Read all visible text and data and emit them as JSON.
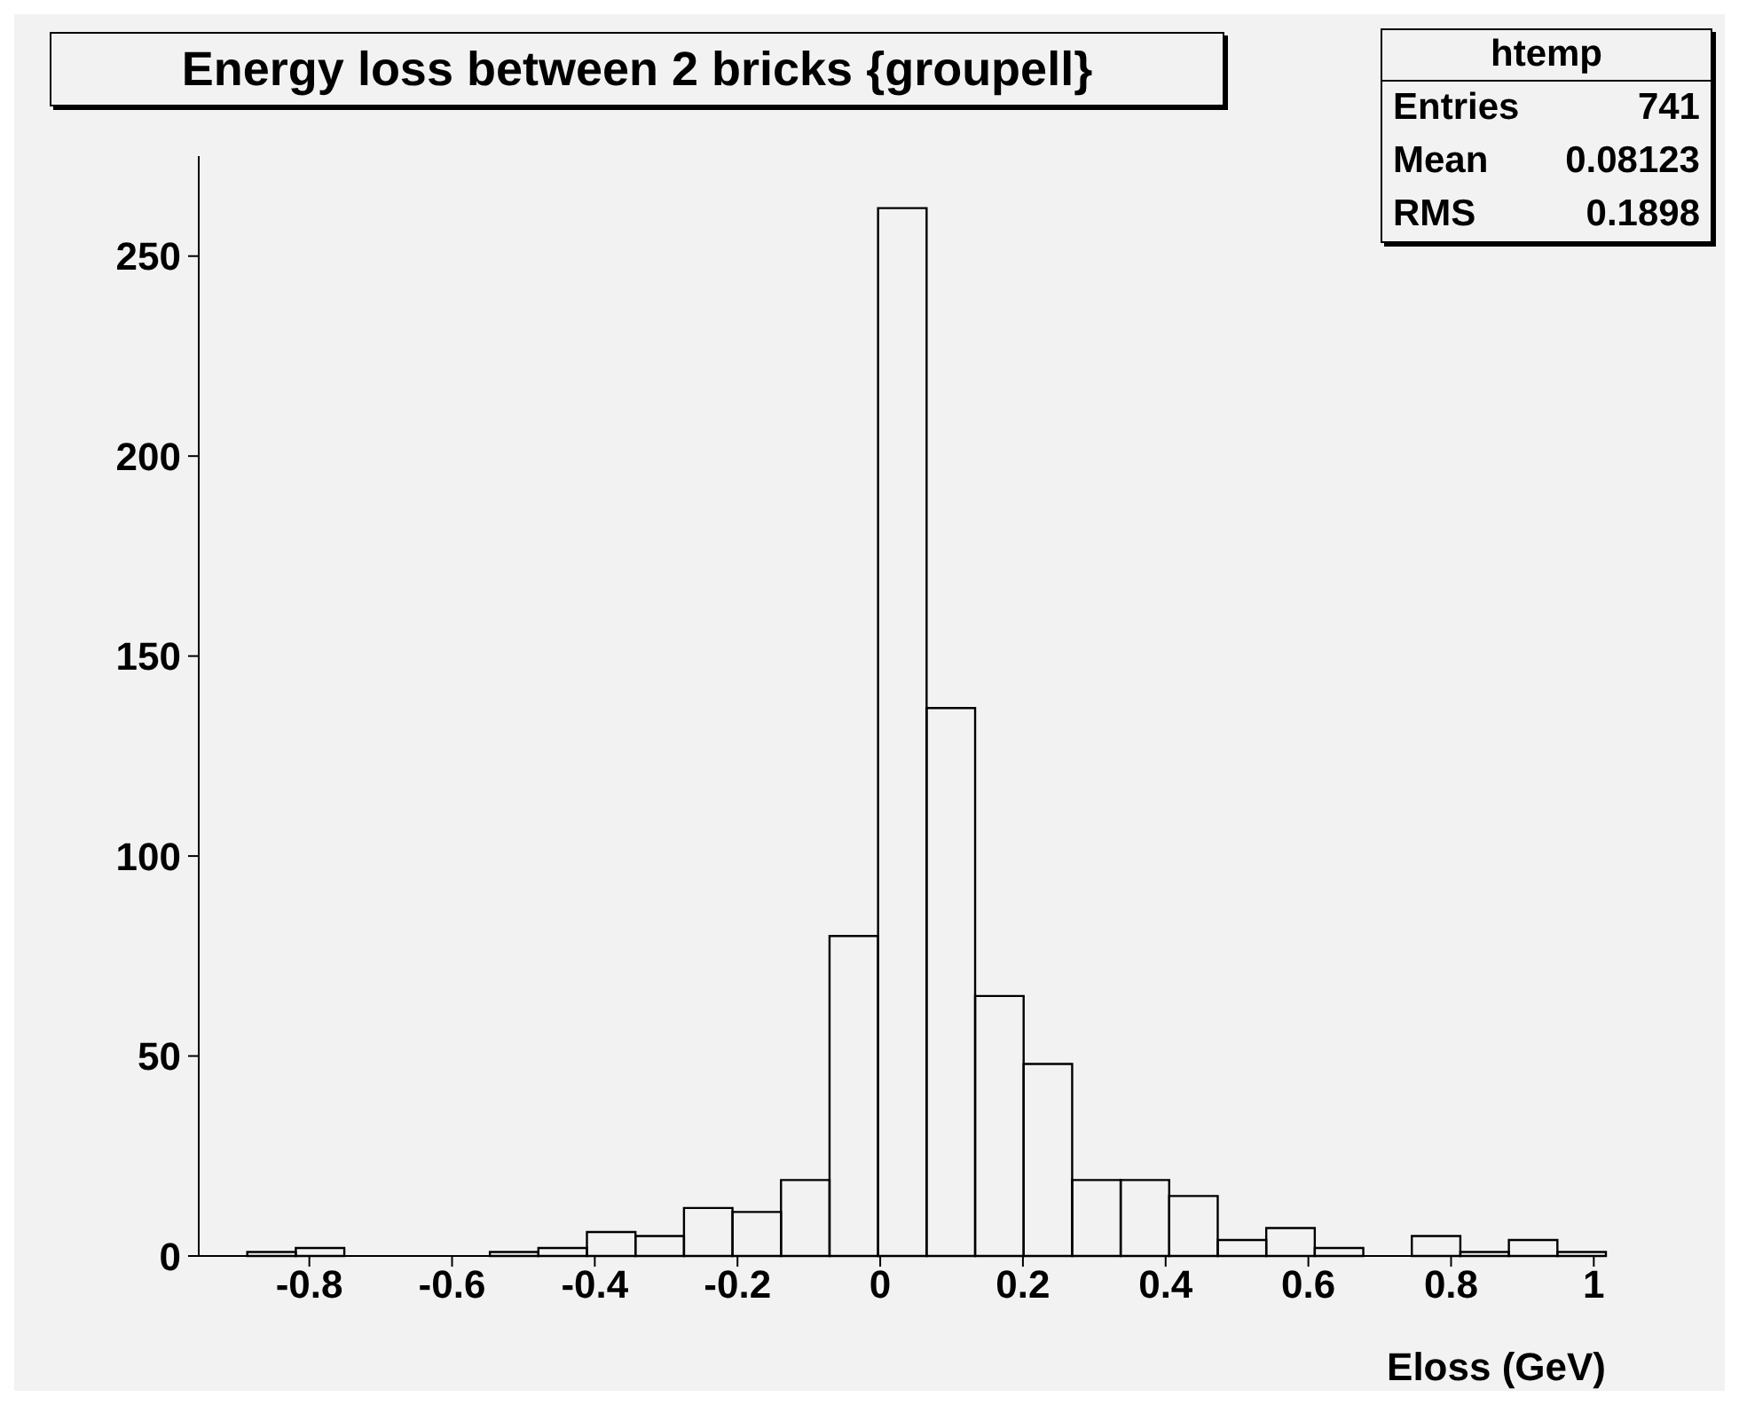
{
  "chart_data": {
    "type": "histogram",
    "title": "Energy loss between 2 bricks {groupell}",
    "xlabel": "Eloss (GeV)",
    "annotations": [
      "htemp",
      "Entries",
      "741",
      "Mean",
      "0.08123",
      "RMS",
      "0.1898"
    ],
    "bins": [
      -0.955,
      -0.887,
      -0.819,
      -0.751,
      -0.683,
      -0.615,
      -0.547,
      -0.479,
      -0.411,
      -0.343,
      -0.275,
      -0.207,
      -0.139,
      -0.071,
      -0.003,
      0.065,
      0.133,
      0.201,
      0.269,
      0.337,
      0.405,
      0.473,
      0.541,
      0.609,
      0.677,
      0.745,
      0.813,
      0.881,
      0.949,
      1.017
    ],
    "values": [
      0,
      1,
      2,
      0,
      0,
      0,
      1,
      2,
      6,
      5,
      12,
      11,
      19,
      80,
      262,
      137,
      65,
      48,
      19,
      19,
      15,
      4,
      7,
      2,
      0,
      5,
      1,
      4,
      1
    ],
    "color": "#000000",
    "xlim": [
      -0.955,
      1.017
    ],
    "xticks": [
      {
        "value": -0.8,
        "label": "-0.8"
      },
      {
        "value": -0.6,
        "label": "-0.6"
      },
      {
        "value": -0.4,
        "label": "-0.4"
      },
      {
        "value": -0.2,
        "label": "-0.2"
      },
      0,
      0.2,
      0.4,
      0.6,
      0.8,
      1
    ],
    "ylim": [
      0,
      275
    ],
    "yticks": [
      0,
      50,
      100,
      150,
      200,
      250
    ],
    "grid": false
  }
}
